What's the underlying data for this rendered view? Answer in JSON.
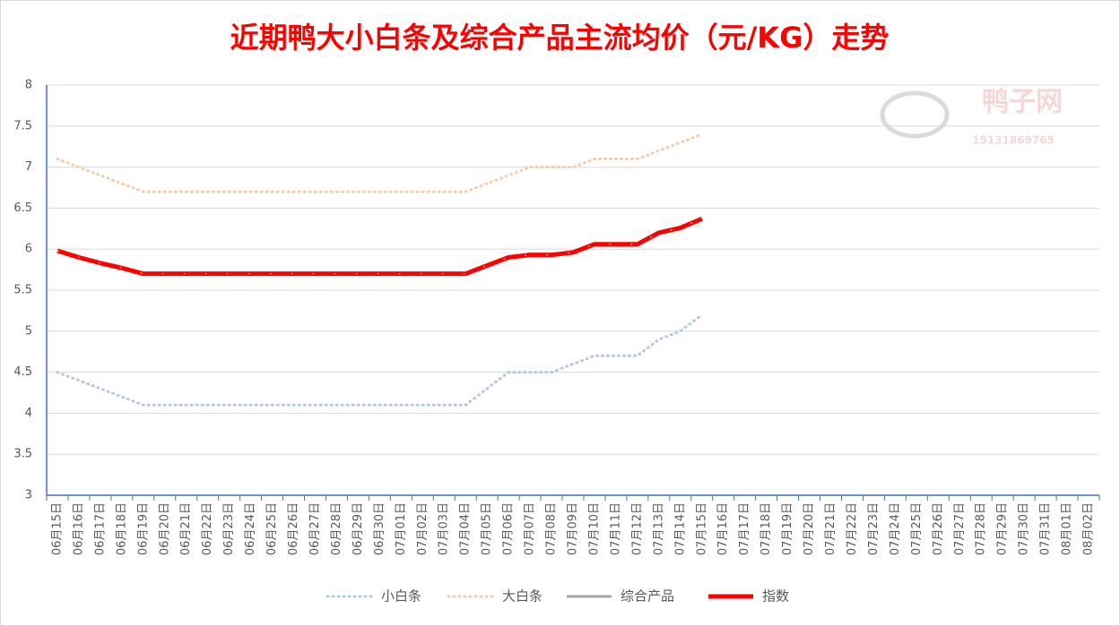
{
  "chart_data": {
    "type": "line",
    "title": "近期鸭大小白条及综合产品主流均价（元/KG）走势",
    "watermark": {
      "name": "鸭子网",
      "phone": "15131869765"
    },
    "categories": [
      "06月15日",
      "06月16日",
      "06月17日",
      "06月18日",
      "06月19日",
      "06月20日",
      "06月21日",
      "06月22日",
      "06月23日",
      "06月24日",
      "06月25日",
      "06月26日",
      "06月27日",
      "06月28日",
      "06月29日",
      "06月30日",
      "07月01日",
      "07月02日",
      "07月03日",
      "07月04日",
      "07月05日",
      "07月06日",
      "07月07日",
      "07月08日",
      "07月09日",
      "07月10日",
      "07月11日",
      "07月12日",
      "07月13日",
      "07月14日",
      "07月15日",
      "07月16日",
      "07月17日",
      "07月18日",
      "07月19日",
      "07月20日",
      "07月21日",
      "07月22日",
      "07月23日",
      "07月24日",
      "07月25日",
      "07月26日",
      "07月27日",
      "07月28日",
      "07月29日",
      "07月30日",
      "07月31日",
      "08月01日",
      "08月02日"
    ],
    "series": [
      {
        "name": "小白条",
        "color": "#b4c7e7",
        "style": "dotted",
        "values": [
          4.5,
          4.4,
          4.3,
          4.2,
          4.1,
          4.1,
          4.1,
          4.1,
          4.1,
          4.1,
          4.1,
          4.1,
          4.1,
          4.1,
          4.1,
          4.1,
          4.1,
          4.1,
          4.1,
          4.1,
          4.3,
          4.5,
          4.5,
          4.5,
          4.6,
          4.7,
          4.7,
          4.7,
          4.9,
          5.0,
          5.2,
          null,
          null,
          null,
          null,
          null,
          null,
          null,
          null,
          null,
          null,
          null,
          null,
          null,
          null,
          null,
          null,
          null,
          null
        ]
      },
      {
        "name": "大白条",
        "color": "#f8cbad",
        "style": "dotted",
        "values": [
          7.1,
          7.0,
          6.9,
          6.8,
          6.7,
          6.7,
          6.7,
          6.7,
          6.7,
          6.7,
          6.7,
          6.7,
          6.7,
          6.7,
          6.7,
          6.7,
          6.7,
          6.7,
          6.7,
          6.7,
          6.8,
          6.9,
          7.0,
          7.0,
          7.0,
          7.1,
          7.1,
          7.1,
          7.2,
          7.3,
          7.4,
          null,
          null,
          null,
          null,
          null,
          null,
          null,
          null,
          null,
          null,
          null,
          null,
          null,
          null,
          null,
          null,
          null,
          null
        ]
      },
      {
        "name": "综合产品",
        "color": "#a5a5a5",
        "style": "solid",
        "values": [
          null,
          null,
          null,
          null,
          null,
          null,
          null,
          null,
          null,
          null,
          null,
          null,
          null,
          null,
          null,
          null,
          null,
          null,
          null,
          null,
          null,
          null,
          null,
          null,
          null,
          null,
          null,
          null,
          null,
          null,
          null,
          null,
          null,
          null,
          null,
          null,
          null,
          null,
          null,
          null,
          null,
          null,
          null,
          null,
          null,
          null,
          null,
          null,
          null
        ]
      },
      {
        "name": "指数",
        "color": "#ff0000",
        "style": "thick",
        "values": [
          5.98,
          5.9,
          5.83,
          5.77,
          5.7,
          5.7,
          5.7,
          5.7,
          5.7,
          5.7,
          5.7,
          5.7,
          5.7,
          5.7,
          5.7,
          5.7,
          5.7,
          5.7,
          5.7,
          5.7,
          5.8,
          5.9,
          5.93,
          5.93,
          5.96,
          6.06,
          6.06,
          6.06,
          6.2,
          6.26,
          6.37,
          null,
          null,
          null,
          null,
          null,
          null,
          null,
          null,
          null,
          null,
          null,
          null,
          null,
          null,
          null,
          null,
          null,
          null
        ]
      }
    ],
    "ylim": [
      3,
      8
    ],
    "yticks": [
      3,
      3.5,
      4,
      4.5,
      5,
      5.5,
      6,
      6.5,
      7,
      7.5,
      8
    ],
    "grid": true,
    "legend": "bottom"
  }
}
